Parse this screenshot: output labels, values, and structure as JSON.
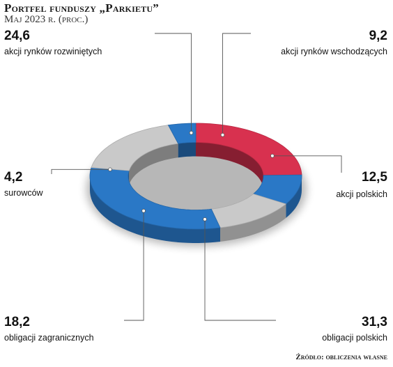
{
  "header": {
    "title": "Portfel funduszy „Parkietu”",
    "subtitle": "Maj 2023 r. (proc.)"
  },
  "source": "Źródło: obliczenia własne",
  "colors": {
    "red": "#d8314f",
    "blue": "#2a78c6",
    "gray": "#c9c9c9"
  },
  "chart_data": {
    "type": "pie",
    "title": "Portfel funduszy „Parkietu”",
    "subtitle": "Maj 2023 r. (proc.)",
    "slices": [
      {
        "label": "akcji rynków rozwiniętych",
        "value": 24.6,
        "value_text": "24,6",
        "color": "red"
      },
      {
        "label": "akcji rynków wschodzących",
        "value": 9.2,
        "value_text": "9,2",
        "color": "blue"
      },
      {
        "label": "akcji polskich",
        "value": 12.5,
        "value_text": "12,5",
        "color": "gray"
      },
      {
        "label": "obligacji polskich",
        "value": 31.3,
        "value_text": "31,3",
        "color": "blue"
      },
      {
        "label": "obligacji zagranicznych",
        "value": 18.2,
        "value_text": "18,2",
        "color": "gray"
      },
      {
        "label": "surowców",
        "value": 4.2,
        "value_text": "4,2",
        "color": "blue"
      }
    ]
  }
}
